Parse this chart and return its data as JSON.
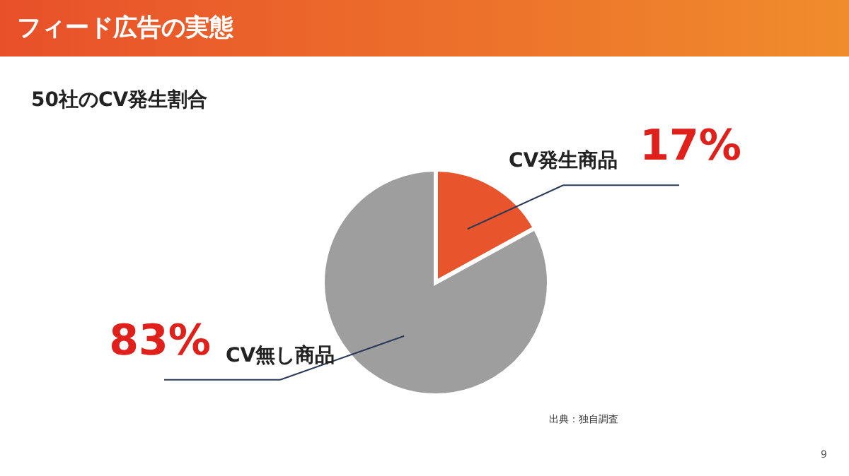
{
  "chart_data": {
    "type": "pie",
    "title": "フィード広告の実態",
    "subtitle": "50社のCV発生割合",
    "categories": [
      "CV発生商品",
      "CV無し商品"
    ],
    "values": [
      17,
      83
    ],
    "colors": [
      "#e8542c",
      "#9e9e9e"
    ],
    "value_labels": [
      "17%",
      "83%"
    ],
    "annotations": [
      "出典：独自調査",
      "9"
    ]
  }
}
